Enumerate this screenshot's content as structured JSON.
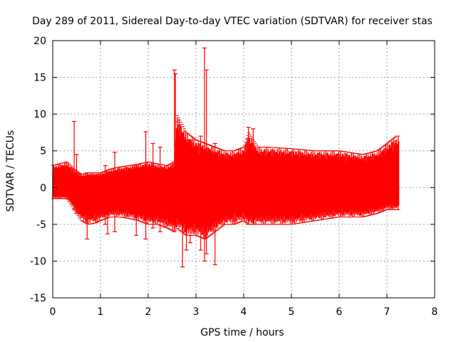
{
  "chart_data": {
    "type": "errorbar-envelope",
    "title": "Day 289 of 2011, Sidereal Day-to-day VTEC variation (SDTVAR) for receiver stas",
    "xlabel": "GPS time / hours",
    "ylabel": "SDTVAR / TECUs",
    "xlim": [
      0,
      8
    ],
    "ylim": [
      -15,
      20
    ],
    "xticks": [
      0,
      1,
      2,
      3,
      4,
      5,
      6,
      7,
      8
    ],
    "yticks": [
      -15,
      -10,
      -5,
      0,
      5,
      10,
      15,
      20
    ],
    "grid": true,
    "series_color": "#ff0000",
    "envelope": {
      "x": [
        0.0,
        0.3,
        0.45,
        0.6,
        0.75,
        0.9,
        1.0,
        1.2,
        1.4,
        1.6,
        1.8,
        2.0,
        2.2,
        2.4,
        2.55,
        2.6,
        2.8,
        3.0,
        3.2,
        3.4,
        3.6,
        3.8,
        4.0,
        4.1,
        4.3,
        4.5,
        5.0,
        5.5,
        6.0,
        6.5,
        6.8,
        7.0,
        7.2,
        7.25
      ],
      "upper": [
        3.0,
        3.5,
        2.5,
        1.8,
        2.0,
        2.0,
        2.0,
        2.5,
        2.8,
        3.0,
        3.2,
        3.5,
        3.2,
        3.0,
        3.5,
        10.0,
        7.5,
        6.5,
        6.0,
        5.5,
        5.0,
        5.0,
        5.5,
        7.5,
        5.5,
        5.5,
        5.3,
        5.0,
        5.0,
        4.5,
        5.0,
        6.0,
        7.0,
        7.0
      ],
      "lower": [
        -1.5,
        -1.5,
        -3.0,
        -4.5,
        -5.0,
        -4.8,
        -4.5,
        -4.0,
        -4.0,
        -4.2,
        -4.5,
        -5.0,
        -5.0,
        -5.5,
        -6.0,
        -5.5,
        -6.5,
        -6.5,
        -7.0,
        -6.0,
        -5.0,
        -5.0,
        -4.5,
        -5.0,
        -5.0,
        -5.0,
        -5.0,
        -4.5,
        -4.0,
        -4.0,
        -3.5,
        -3.0,
        -3.0,
        -3.0
      ]
    },
    "spikes": [
      {
        "x": 0.45,
        "high": 9.0,
        "low": -3.0
      },
      {
        "x": 0.5,
        "high": 4.5,
        "low": -3.5
      },
      {
        "x": 0.72,
        "high": 2.0,
        "low": -7.0
      },
      {
        "x": 1.1,
        "high": 3.0,
        "low": -5.0
      },
      {
        "x": 1.15,
        "high": 2.0,
        "low": -6.3
      },
      {
        "x": 1.3,
        "high": 4.8,
        "low": -6.0
      },
      {
        "x": 1.75,
        "high": 3.0,
        "low": -6.5
      },
      {
        "x": 1.95,
        "high": 7.6,
        "low": -7.0
      },
      {
        "x": 2.1,
        "high": 6.0,
        "low": -5.5
      },
      {
        "x": 2.25,
        "high": 5.5,
        "low": -6.0
      },
      {
        "x": 2.55,
        "high": 16.0,
        "low": -6.0
      },
      {
        "x": 2.57,
        "high": 15.5,
        "low": -5.0
      },
      {
        "x": 2.72,
        "high": 4.0,
        "low": -10.8
      },
      {
        "x": 2.8,
        "high": 5.0,
        "low": -8.5
      },
      {
        "x": 2.88,
        "high": 5.0,
        "low": -7.5
      },
      {
        "x": 3.1,
        "high": 7.0,
        "low": -8.5
      },
      {
        "x": 3.18,
        "high": 19.0,
        "low": -10.0
      },
      {
        "x": 3.22,
        "high": 16.0,
        "low": -9.0
      },
      {
        "x": 3.4,
        "high": 6.0,
        "low": -10.5
      },
      {
        "x": 4.1,
        "high": 8.2,
        "low": -5.0
      },
      {
        "x": 4.2,
        "high": 8.0,
        "low": -5.0
      }
    ]
  }
}
